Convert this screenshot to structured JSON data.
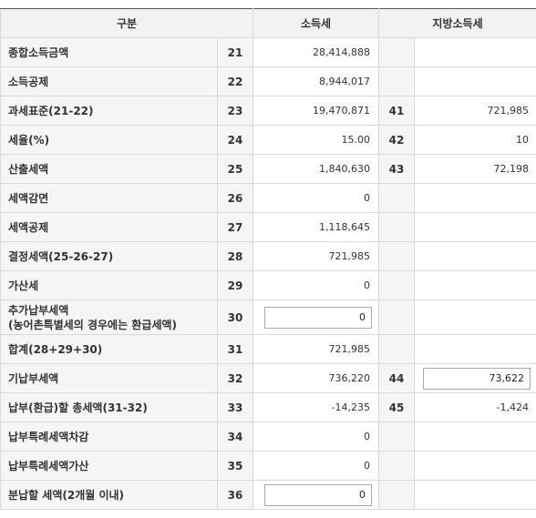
{
  "header": {
    "category": "구분",
    "income_tax": "소득세",
    "local_income_tax": "지방소득세"
  },
  "rows": [
    {
      "label": "종합소득금액",
      "code": "21",
      "value": "28,414,888",
      "local_code": "",
      "local_value": ""
    },
    {
      "label": "소득공제",
      "code": "22",
      "value": "8,944,017",
      "local_code": "",
      "local_value": ""
    },
    {
      "label": "과세표준(21-22)",
      "code": "23",
      "value": "19,470,871",
      "local_code": "41",
      "local_value": "721,985"
    },
    {
      "label": "세율(%)",
      "code": "24",
      "value": "15.00",
      "local_code": "42",
      "local_value": "10"
    },
    {
      "label": "산출세액",
      "code": "25",
      "value": "1,840,630",
      "local_code": "43",
      "local_value": "72,198"
    },
    {
      "label": "세액감면",
      "code": "26",
      "value": "0",
      "local_code": "",
      "local_value": ""
    },
    {
      "label": "세액공제",
      "code": "27",
      "value": "1,118,645",
      "local_code": "",
      "local_value": ""
    },
    {
      "label": "결정세액(25-26-27)",
      "code": "28",
      "value": "721,985",
      "local_code": "",
      "local_value": ""
    },
    {
      "label": "가산세",
      "code": "29",
      "value": "0",
      "local_code": "",
      "local_value": ""
    },
    {
      "label": "추가납부세액",
      "label_line2": "(농어촌특별세의 경우에는 환급세액)",
      "code": "30",
      "value": "0",
      "local_code": "",
      "local_value": ""
    },
    {
      "label": "합계(28+29+30)",
      "code": "31",
      "value": "721,985",
      "local_code": "",
      "local_value": ""
    },
    {
      "label": "기납부세액",
      "code": "32",
      "value": "736,220",
      "local_code": "44",
      "local_value": "73,622"
    },
    {
      "label": "납부(환급)할 총세액(31-32)",
      "code": "33",
      "value": "-14,235",
      "local_code": "45",
      "local_value": "-1,424"
    },
    {
      "label": "납부특례세액차감",
      "code": "34",
      "value": "0",
      "local_code": "",
      "local_value": ""
    },
    {
      "label": "납부특례세액가산",
      "code": "35",
      "value": "0",
      "local_code": "",
      "local_value": ""
    },
    {
      "label": "분납할 세액(2개월 이내)",
      "code": "36",
      "value": "0",
      "local_code": "",
      "local_value": ""
    }
  ]
}
